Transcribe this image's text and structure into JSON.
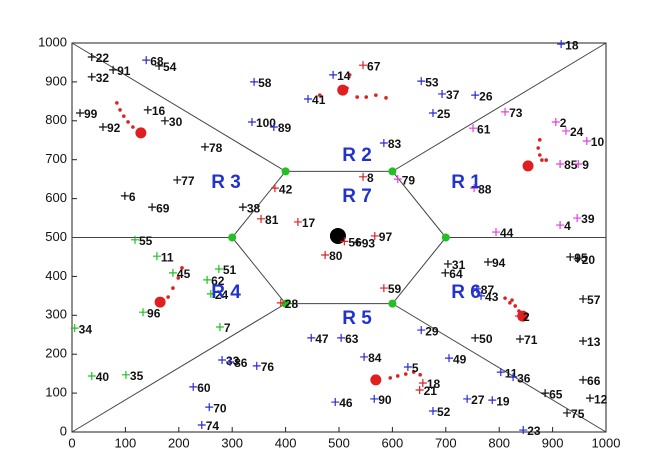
{
  "chart_data": {
    "type": "scatter",
    "xlim": [
      0,
      1000
    ],
    "ylim": [
      0,
      1000
    ],
    "xticks": [
      0,
      100,
      200,
      300,
      400,
      500,
      600,
      700,
      800,
      900,
      1000
    ],
    "yticks": [
      0,
      100,
      200,
      300,
      400,
      500,
      600,
      700,
      800,
      900,
      1000
    ],
    "regions": [
      "R 1",
      "R 2",
      "R 3",
      "R 4",
      "R 5",
      "R 6",
      "R 7"
    ],
    "hexagon": {
      "color": "#22c022",
      "x": [
        400,
        600,
        700,
        600,
        400,
        300
      ],
      "y": [
        670,
        670,
        500,
        330,
        330,
        500
      ]
    },
    "series": [
      {
        "color": "#111111",
        "labels": [
          "22",
          "32",
          "91",
          "99",
          "92",
          "16",
          "30",
          "78",
          "77",
          "6",
          "69",
          "38",
          "31",
          "64",
          "94",
          "50",
          "71",
          "13",
          "57",
          "95",
          "20",
          "66",
          "12",
          "65",
          "75",
          "54",
          "93"
        ],
        "x": [
          37,
          37,
          77,
          15,
          58,
          142,
          174,
          249,
          197,
          99,
          150,
          320,
          704,
          699,
          779,
          755,
          839,
          957,
          957,
          933,
          947,
          957,
          970,
          886,
          927,
          163,
          535
        ],
        "y": [
          964,
          913,
          931,
          820,
          784,
          828,
          800,
          733,
          648,
          607,
          578,
          578,
          432,
          409,
          437,
          242,
          239,
          234,
          342,
          450,
          445,
          134,
          87,
          100,
          49,
          941,
          488
        ]
      },
      {
        "color": "#2b2bd8",
        "labels": [
          "18",
          "68",
          "58",
          "14",
          "41",
          "53",
          "37",
          "26",
          "25",
          "100",
          "89",
          "83",
          "47",
          "63",
          "29",
          "84",
          "49",
          "5",
          "11",
          "36",
          "27",
          "19",
          "46",
          "90",
          "52",
          "23",
          "33",
          "86",
          "76",
          "60",
          "70",
          "74",
          "87",
          "43"
        ],
        "x": [
          916,
          139,
          341,
          489,
          442,
          654,
          693,
          755,
          676,
          337,
          378,
          584,
          448,
          504,
          654,
          547,
          706,
          629,
          803,
          826,
          740,
          787,
          493,
          566,
          676,
          845,
          281,
          296,
          346,
          227,
          257,
          243,
          758,
          766
        ],
        "y": [
          997,
          956,
          900,
          918,
          856,
          902,
          869,
          866,
          820,
          797,
          784,
          743,
          242,
          242,
          262,
          193,
          190,
          167,
          154,
          141,
          85,
          82,
          77,
          85,
          54,
          5,
          185,
          180,
          170,
          116,
          64,
          18,
          368,
          350
        ]
      },
      {
        "color": "#e02020",
        "labels": [
          "67",
          "42",
          "8",
          "81",
          "17",
          "56",
          "97",
          "80",
          "59",
          "28",
          "2",
          "18",
          "21"
        ],
        "x": [
          545,
          380,
          545,
          354,
          423,
          510,
          567,
          474,
          584,
          391,
          837,
          657,
          651
        ],
        "y": [
          943,
          627,
          656,
          548,
          540,
          490,
          504,
          455,
          370,
          332,
          298,
          126,
          108
        ]
      },
      {
        "color": "#e040e0",
        "labels": [
          "73",
          "61",
          "2",
          "24",
          "10",
          "85",
          "9",
          "79",
          "88",
          "39",
          "4",
          "44"
        ],
        "x": [
          811,
          751,
          906,
          925,
          964,
          914,
          948,
          610,
          753,
          946,
          914,
          794
        ],
        "y": [
          823,
          781,
          797,
          774,
          748,
          689,
          689,
          650,
          627,
          550,
          532,
          514
        ]
      },
      {
        "color": "#22c022",
        "labels": [
          "55",
          "11",
          "51",
          "62",
          "45",
          "96",
          "34",
          "7",
          "40",
          "35",
          "24"
        ],
        "x": [
          118,
          159,
          275,
          253,
          189,
          133,
          5,
          277,
          37,
          101,
          260
        ],
        "y": [
          494,
          452,
          419,
          391,
          409,
          308,
          267,
          270,
          144,
          147,
          355
        ]
      }
    ],
    "big_dots": [
      {
        "color": "#e02020",
        "x": [
          129,
          507,
          854,
          844,
          569,
          165
        ],
        "y": [
          769,
          879,
          684,
          298,
          134,
          334
        ]
      },
      {
        "color": "#000000",
        "x": [
          498
        ],
        "y": [
          504
        ]
      }
    ],
    "trail_dots": {
      "color": "#e02020",
      "x": [
        84,
        90,
        97,
        105,
        114,
        464,
        515,
        534,
        551,
        569,
        588,
        520,
        876,
        873,
        876,
        880,
        888,
        206,
        199,
        189,
        180,
        811,
        820,
        830,
        837,
        824,
        596,
        610,
        625,
        640,
        652
      ],
      "y": [
        846,
        828,
        812,
        797,
        784,
        866,
        884,
        861,
        861,
        866,
        859,
        918,
        751,
        730,
        712,
        699,
        699,
        422,
        396,
        370,
        347,
        344,
        332,
        324,
        311,
        339,
        139,
        144,
        149,
        154,
        147
      ]
    }
  }
}
